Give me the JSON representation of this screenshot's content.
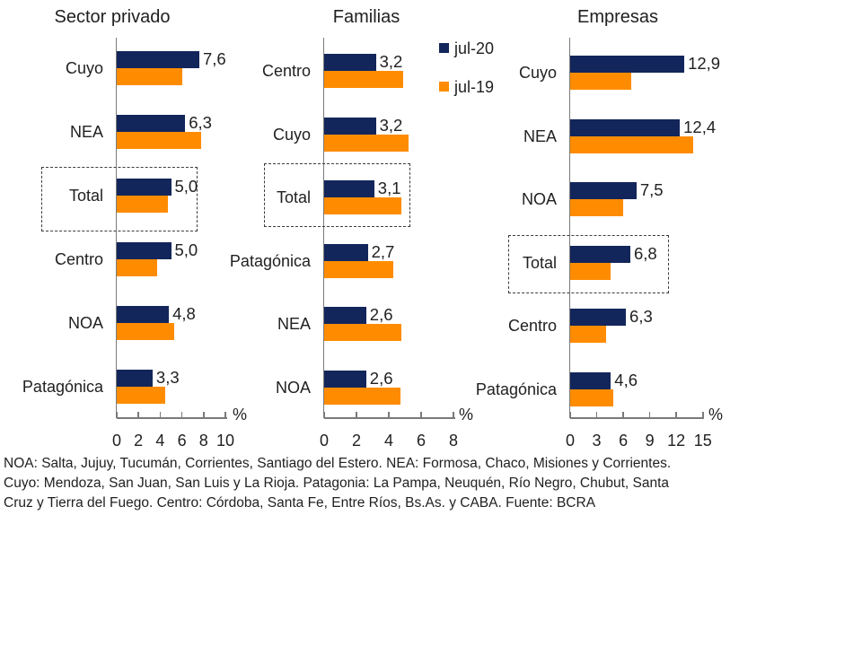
{
  "colors": {
    "jul20": "#13265B",
    "jul19": "#FF8C00",
    "axis": "#7A7A7A",
    "text": "#212121",
    "background": "#FFFFFF"
  },
  "legend": {
    "position": "top-center",
    "items": [
      {
        "label": "jul-20",
        "color": "#13265B"
      },
      {
        "label": "jul-19",
        "color": "#FF8C00"
      }
    ]
  },
  "footnote": {
    "lines": [
      "NOA: Salta, Jujuy, Tucumán, Corrientes, Santiago del Estero. NEA: Formosa, Chaco, Misiones y Corrientes.",
      "Cuyo: Mendoza, San Juan, San Luis y La Rioja. Patagonia: La Pampa, Neuquén, Río Negro, Chubut, Santa",
      "Cruz y Tierra del Fuego. Centro: Córdoba, Santa Fe, Entre Ríos, Bs.As. y CABA. Fuente: BCRA"
    ]
  },
  "chart_data": [
    {
      "type": "bar",
      "orientation": "horizontal",
      "title": "Sector privado",
      "x_unit_label": "%",
      "categories": [
        "Cuyo",
        "NEA",
        "Total",
        "Centro",
        "NOA",
        "Patagónica"
      ],
      "series": [
        {
          "name": "jul-20",
          "color": "#13265B",
          "values": [
            7.6,
            6.3,
            5.0,
            5.0,
            4.8,
            3.3
          ]
        },
        {
          "name": "jul-19",
          "color": "#FF8C00",
          "values": [
            6.0,
            7.8,
            4.7,
            3.7,
            5.3,
            4.5
          ]
        }
      ],
      "data_labels": [
        "7,6",
        "6,3",
        "5,0",
        "5,0",
        "4,8",
        "3,3"
      ],
      "xlim": [
        0,
        10
      ],
      "xticks": [
        0,
        2,
        4,
        6,
        8,
        10
      ],
      "grid": false,
      "highlighted_category": "Total"
    },
    {
      "type": "bar",
      "orientation": "horizontal",
      "title": "Familias",
      "x_unit_label": "%",
      "categories": [
        "Centro",
        "Cuyo",
        "Total",
        "Patagónica",
        "NEA",
        "NOA"
      ],
      "series": [
        {
          "name": "jul-20",
          "color": "#13265B",
          "values": [
            3.2,
            3.2,
            3.1,
            2.7,
            2.6,
            2.6
          ]
        },
        {
          "name": "jul-19",
          "color": "#FF8C00",
          "values": [
            4.9,
            5.2,
            4.8,
            4.3,
            4.8,
            4.7
          ]
        }
      ],
      "data_labels": [
        "3,2",
        "3,2",
        "3,1",
        "2,7",
        "2,6",
        "2,6"
      ],
      "xlim": [
        0,
        8
      ],
      "xticks": [
        0,
        2,
        4,
        6,
        8
      ],
      "grid": false,
      "highlighted_category": "Total"
    },
    {
      "type": "bar",
      "orientation": "horizontal",
      "title": "Empresas",
      "x_unit_label": "%",
      "categories": [
        "Cuyo",
        "NEA",
        "NOA",
        "Total",
        "Centro",
        "Patagónica"
      ],
      "series": [
        {
          "name": "jul-20",
          "color": "#13265B",
          "values": [
            12.9,
            12.4,
            7.5,
            6.8,
            6.3,
            4.6
          ]
        },
        {
          "name": "jul-19",
          "color": "#FF8C00",
          "values": [
            6.9,
            13.9,
            6.0,
            4.6,
            4.1,
            4.9
          ]
        }
      ],
      "data_labels": [
        "12,9",
        "12,4",
        "7,5",
        "6,8",
        "6,3",
        "4,6"
      ],
      "xlim": [
        0,
        15
      ],
      "xticks": [
        0,
        3,
        6,
        9,
        12,
        15
      ],
      "grid": false,
      "highlighted_category": "Total"
    }
  ]
}
